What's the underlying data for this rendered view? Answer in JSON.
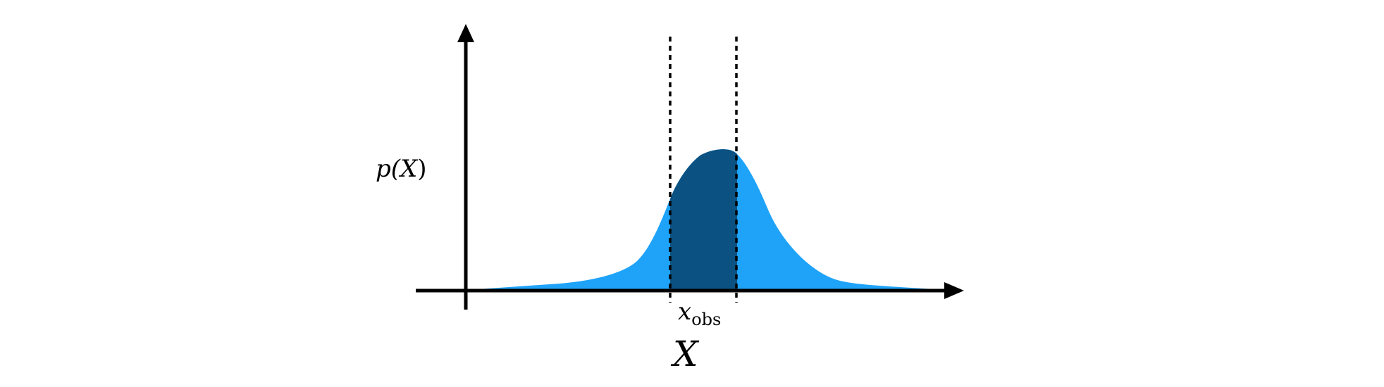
{
  "diagram": {
    "y_label": {
      "prefix": "p(",
      "var": "X",
      "suffix": ")"
    },
    "x_axis_label": "X",
    "observation_label": {
      "base": "x",
      "subscript": "obs"
    },
    "colors": {
      "density_fill": "#1ea3f9",
      "interval_fill": "#0b5282",
      "axis": "#000000",
      "interval_bounds": "#000000",
      "background": "#ffffff"
    },
    "shape": "unimodal bell-shaped density with a dark shaded interval around x_obs bounded by two dotted vertical lines"
  }
}
